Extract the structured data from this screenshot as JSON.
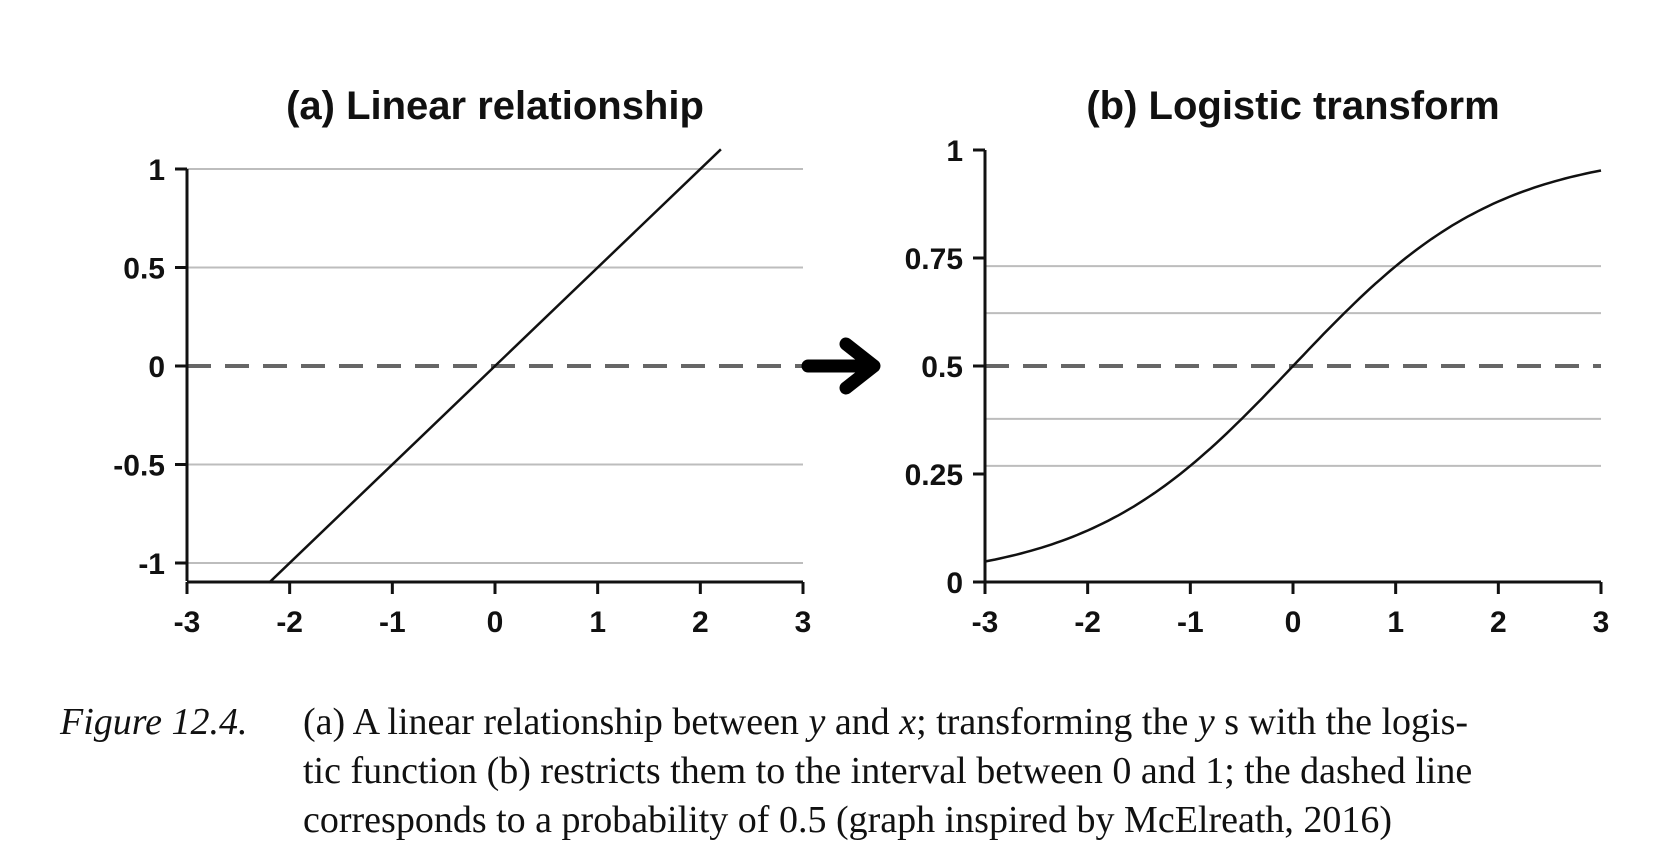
{
  "chart_data": [
    {
      "type": "line",
      "title": "(a) Linear relationship",
      "xlabel": "",
      "ylabel": "",
      "xlim": [
        -3,
        3
      ],
      "ylim": [
        -1.1,
        1.1
      ],
      "x_ticks": [
        "-3",
        "-2",
        "-1",
        "0",
        "1",
        "2",
        "3"
      ],
      "y_ticks": [
        "1",
        "0.5",
        "0",
        "-0.5",
        "-1"
      ],
      "grid_y": [
        1,
        0.5,
        -0.5,
        -1
      ],
      "dashed_y": 0,
      "series": [
        {
          "x": [
            -2.2,
            2.2
          ],
          "y": [
            -1.1,
            1.1
          ]
        }
      ]
    },
    {
      "type": "line",
      "title": "(b) Logistic transform",
      "xlabel": "",
      "ylabel": "",
      "xlim": [
        -3,
        3
      ],
      "ylim": [
        0,
        1
      ],
      "x_ticks": [
        "-3",
        "-2",
        "-1",
        "0",
        "1",
        "2",
        "3"
      ],
      "y_ticks": [
        "1",
        "0.75",
        "0.5",
        "0.25",
        "0"
      ],
      "grid_y": [
        0.7311,
        0.6225,
        0.3775,
        0.2689
      ],
      "dashed_y": 0.5,
      "series": [
        {
          "function": "logistic(x)",
          "x_range": [
            -3,
            3
          ]
        }
      ]
    }
  ],
  "arrow_icon": "right-arrow-icon",
  "caption": {
    "label": "Figure 12.4.",
    "line1": {
      "p1": "(a) A linear relationship between ",
      "v1": "y",
      "p2": " and ",
      "v2": "x",
      "p3": "; transforming the ",
      "v3": "y",
      "p4": " s with the logis-"
    },
    "line2": "tic function (b) restricts them to the interval between 0 and 1; the dashed line",
    "line3": "corresponds to a probability of 0.5 (graph inspired by McElreath, 2016)"
  }
}
